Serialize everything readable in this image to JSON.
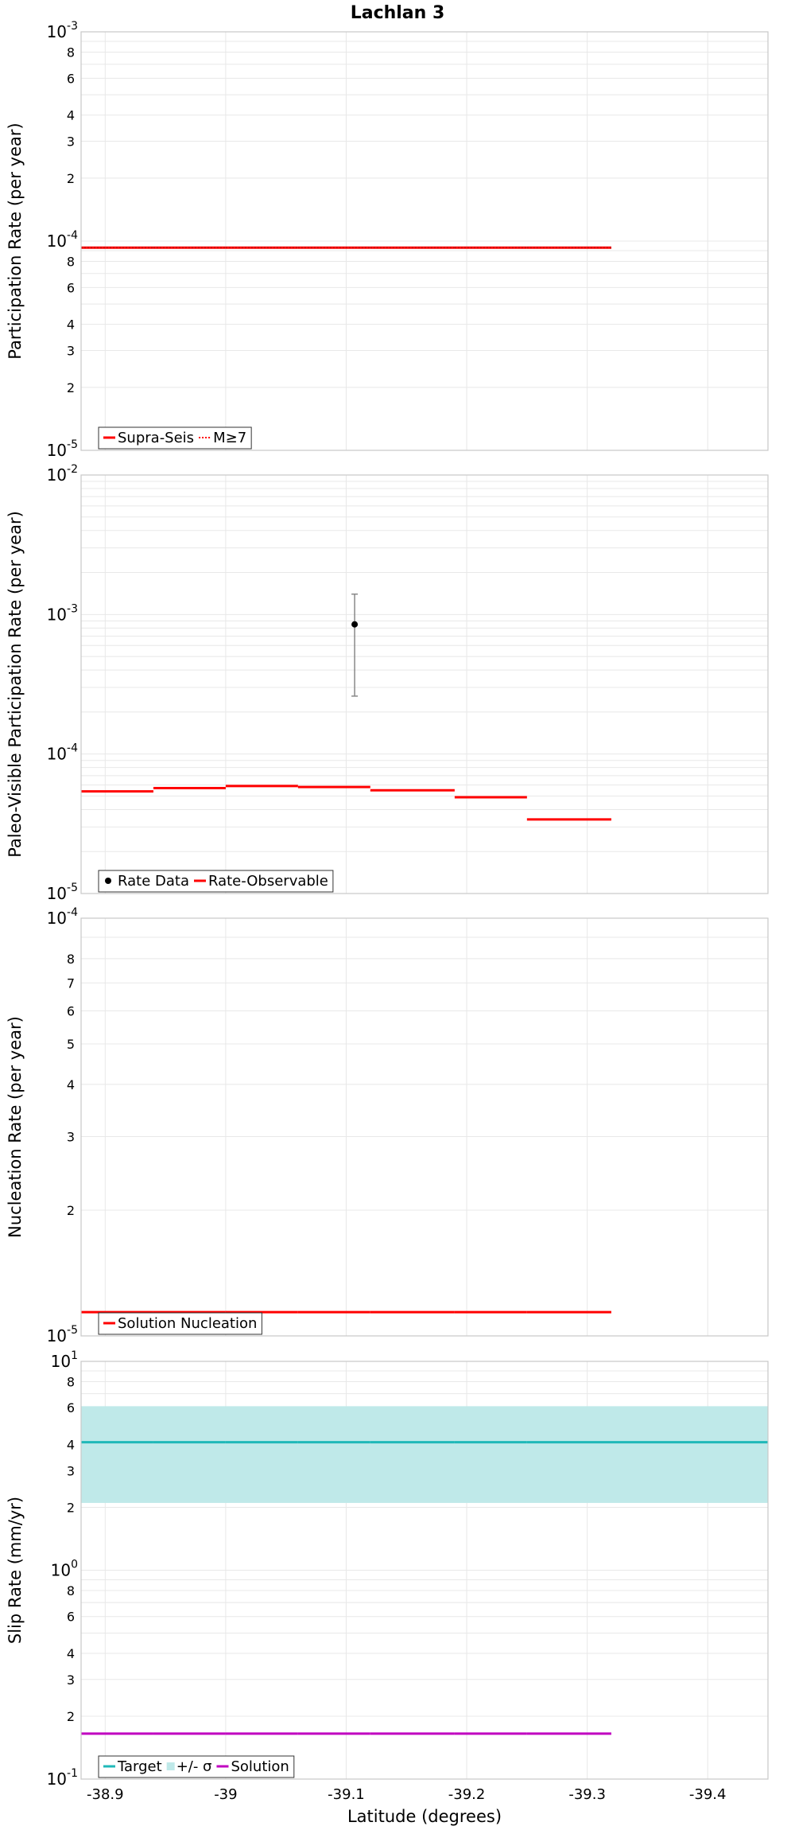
{
  "title": "Lachlan 3",
  "xlabel": "Latitude (degrees)",
  "x_range": [
    -38.88,
    -39.45
  ],
  "x_ticks": [
    -38.9,
    -39,
    -39.1,
    -39.2,
    -39.3,
    -39.4
  ],
  "x_tick_labels": [
    "-38.9",
    "-39",
    "-39.1",
    "-39.2",
    "-39.3",
    "-39.4"
  ],
  "segments": [
    -38.88,
    -38.94,
    -39.0,
    -39.06,
    -39.12,
    -39.19,
    -39.25,
    -39.32
  ],
  "colors": {
    "red": "#ff0000",
    "cyan": "#1fb8b8",
    "band": "#bfe9e9",
    "magenta": "#c000c0",
    "black": "#000000",
    "grid": "#e8e8e8",
    "frame": "#c8c8c8"
  },
  "chart_data": [
    {
      "type": "line",
      "id": "participation",
      "ylabel": "Participation Rate (per year)",
      "yscale": "log",
      "ylim": [
        1e-05,
        0.001
      ],
      "y_major_labels": [
        {
          "exp": "-5",
          "value": 1e-05
        },
        {
          "exp": "-4",
          "value": 0.0001
        },
        {
          "exp": "-3",
          "value": 0.001
        }
      ],
      "y_minor_labels": [
        "2",
        "3",
        "4",
        "6",
        "8"
      ],
      "series": [
        {
          "name": "Supra-Seis",
          "style": "solid",
          "color": "#ff0000",
          "values": [
            9.3e-05,
            9.3e-05,
            9.3e-05,
            9.3e-05,
            9.3e-05,
            9.3e-05,
            9.3e-05
          ]
        },
        {
          "name": "M≥7",
          "style": "dotted",
          "color": "#ff0000",
          "values": [
            9.3e-05,
            9.3e-05,
            9.3e-05,
            9.3e-05,
            9.3e-05,
            9.3e-05,
            9.3e-05
          ]
        }
      ]
    },
    {
      "type": "line",
      "id": "paleo",
      "ylabel": "Paleo-Visible Participation Rate (per year)",
      "yscale": "log",
      "ylim": [
        1e-05,
        0.01
      ],
      "y_major_labels": [
        {
          "exp": "-5",
          "value": 1e-05
        },
        {
          "exp": "-4",
          "value": 0.0001
        },
        {
          "exp": "-3",
          "value": 0.001
        },
        {
          "exp": "-2",
          "value": 0.01
        }
      ],
      "y_minor_labels": [],
      "points": [
        {
          "name": "Rate Data",
          "x": -39.107,
          "y": 0.00085,
          "ylow": 0.00026,
          "yhigh": 0.0014
        }
      ],
      "series": [
        {
          "name": "Rate-Observable",
          "style": "solid",
          "color": "#ff0000",
          "values": [
            5.4e-05,
            5.7e-05,
            5.9e-05,
            5.8e-05,
            5.5e-05,
            4.9e-05,
            3.4e-05
          ]
        }
      ]
    },
    {
      "type": "line",
      "id": "nucleation",
      "ylabel": "Nucleation Rate (per year)",
      "yscale": "log",
      "ylim": [
        1e-05,
        0.0001
      ],
      "y_major_labels": [
        {
          "exp": "-5",
          "value": 1e-05
        },
        {
          "exp": "-4",
          "value": 0.0001
        }
      ],
      "y_minor_labels": [
        "2",
        "3",
        "4",
        "5",
        "6",
        "7",
        "8"
      ],
      "series": [
        {
          "name": "Solution Nucleation",
          "style": "solid",
          "color": "#ff0000",
          "values": [
            1.14e-05,
            1.14e-05,
            1.14e-05,
            1.14e-05,
            1.14e-05,
            1.14e-05,
            1.14e-05
          ]
        }
      ]
    },
    {
      "type": "line",
      "id": "slip",
      "ylabel": "Slip Rate (mm/yr)",
      "yscale": "log",
      "ylim": [
        0.1,
        10
      ],
      "y_major_labels": [
        {
          "exp": "-1",
          "value": 0.1
        },
        {
          "exp": "0",
          "value": 1
        },
        {
          "exp": "1",
          "value": 10
        }
      ],
      "y_minor_labels": [
        "2",
        "3",
        "4",
        "6",
        "8"
      ],
      "band": {
        "name": "+/- σ",
        "low": 2.1,
        "high": 6.1,
        "color": "#bfe9e9"
      },
      "series": [
        {
          "name": "Target",
          "style": "solid",
          "color": "#1fb8b8",
          "values": [
            4.1,
            4.1,
            4.1,
            4.1,
            4.1,
            4.1,
            4.1
          ],
          "x_end": -39.45
        },
        {
          "name": "Solution",
          "style": "solid",
          "color": "#c000c0",
          "values": [
            0.165,
            0.165,
            0.165,
            0.165,
            0.165,
            0.165,
            0.165
          ]
        }
      ]
    }
  ]
}
